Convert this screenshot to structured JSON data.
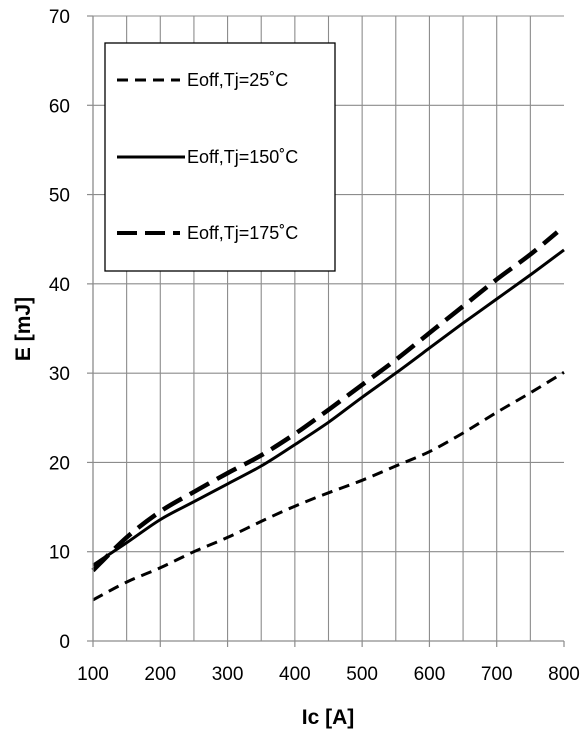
{
  "chart_data": {
    "type": "line",
    "xlabel": "Ic [A]",
    "ylabel": "E [mJ]",
    "xlim": [
      100,
      800
    ],
    "ylim": [
      0,
      70
    ],
    "x_ticks": [
      100,
      200,
      300,
      400,
      500,
      600,
      700,
      800
    ],
    "y_ticks": [
      0,
      10,
      20,
      30,
      40,
      50,
      60,
      70
    ],
    "grid": true,
    "legend_position": "top-left",
    "series": [
      {
        "name": "Eoff,Tj=25˚C",
        "line_style": "short-dash",
        "x": [
          100,
          150,
          200,
          250,
          300,
          350,
          400,
          450,
          500,
          550,
          600,
          650,
          700,
          750,
          800
        ],
        "y": [
          4.6,
          6.6,
          8.2,
          10.0,
          11.6,
          13.4,
          15.1,
          16.6,
          18.0,
          19.6,
          21.2,
          23.3,
          25.6,
          27.8,
          30.1
        ]
      },
      {
        "name": "Eoff,Tj=150˚C",
        "line_style": "solid",
        "x": [
          100,
          150,
          200,
          250,
          300,
          350,
          400,
          450,
          500,
          550,
          600,
          650,
          700,
          750,
          800
        ],
        "y": [
          8.5,
          11.0,
          13.6,
          15.6,
          17.6,
          19.6,
          22.0,
          24.5,
          27.3,
          30.0,
          32.8,
          35.6,
          38.3,
          41.0,
          43.8
        ]
      },
      {
        "name": "Eoff,Tj=175˚C",
        "line_style": "long-dash",
        "x": [
          100,
          150,
          200,
          250,
          300,
          350,
          400,
          450,
          500,
          550,
          600,
          650,
          700,
          750,
          790
        ],
        "y": [
          7.9,
          11.6,
          14.5,
          16.7,
          18.8,
          20.8,
          23.2,
          25.9,
          28.7,
          31.5,
          34.5,
          37.5,
          40.5,
          43.3,
          45.8
        ]
      }
    ]
  }
}
